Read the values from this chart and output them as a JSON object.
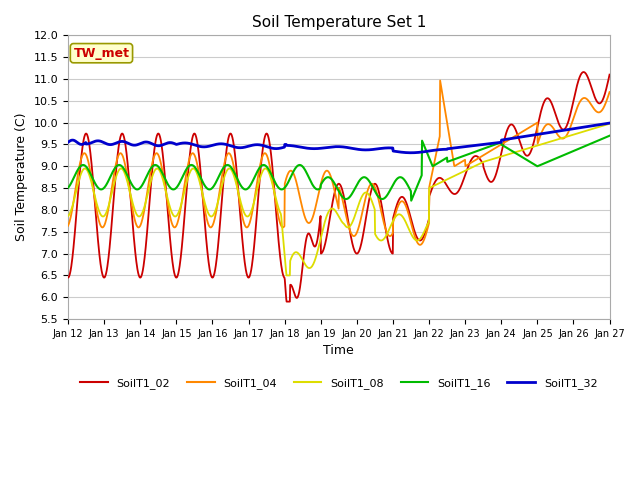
{
  "title": "Soil Temperature Set 1",
  "xlabel": "Time",
  "ylabel": "Soil Temperature (C)",
  "ylim": [
    5.5,
    12.0
  ],
  "fig_bg": "#ffffff",
  "plot_bg": "#ffffff",
  "annotation_text": "TW_met",
  "annotation_box_color": "#ffffcc",
  "annotation_text_color": "#cc0000",
  "annotation_edge_color": "#999900",
  "grid_color": "#cccccc",
  "series_colors": {
    "SoilT1_02": "#cc0000",
    "SoilT1_04": "#ff8800",
    "SoilT1_08": "#dddd00",
    "SoilT1_16": "#00bb00",
    "SoilT1_32": "#0000cc"
  },
  "x_tick_labels": [
    "Jan 12",
    "Jan 13",
    "Jan 14",
    "Jan 15",
    "Jan 16",
    "Jan 17",
    "Jan 18",
    "Jan 19",
    "Jan 20",
    "Jan 21",
    "Jan 22",
    "Jan 23",
    "Jan 24",
    "Jan 25",
    "Jan 26",
    "Jan 27"
  ],
  "yticks": [
    5.5,
    6.0,
    6.5,
    7.0,
    7.5,
    8.0,
    8.5,
    9.0,
    9.5,
    10.0,
    10.5,
    11.0,
    11.5,
    12.0
  ]
}
